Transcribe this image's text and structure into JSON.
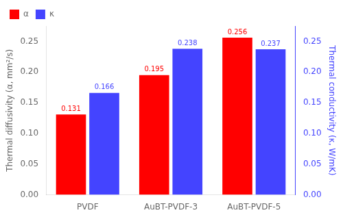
{
  "chart_data": {
    "type": "bar",
    "categories": [
      "PVDF",
      "AuBT-PVDF-3",
      "AuBT-PVDF-5"
    ],
    "series": [
      {
        "name": "α",
        "color": "#ff0000",
        "values": [
          0.131,
          0.195,
          0.256
        ]
      },
      {
        "name": "κ",
        "color": "#4444ff",
        "values": [
          0.166,
          0.238,
          0.237
        ],
        "axis": "y2"
      }
    ],
    "ylabel": "Thermal diffusivity (α, mm²/s)",
    "y2label": "Thermal conductivity (κ, W/mK)",
    "ylim": [
      0.0,
      0.275
    ],
    "yticks": [
      {
        "value": 0.0,
        "label": "0.00"
      },
      {
        "value": 0.05,
        "label": "0.05"
      },
      {
        "value": 0.1,
        "label": "0.10"
      },
      {
        "value": 0.15,
        "label": "0.15"
      },
      {
        "value": 0.2,
        "label": "0.20"
      },
      {
        "value": 0.25,
        "label": "0.25"
      }
    ],
    "y2lim": [
      0.0,
      0.275
    ],
    "y2ticks": [
      {
        "value": 0.0,
        "label": "0.00"
      },
      {
        "value": 0.05,
        "label": "0.05"
      },
      {
        "value": 0.1,
        "label": "0.10"
      },
      {
        "value": 0.15,
        "label": "0.15"
      },
      {
        "value": 0.2,
        "label": "0.20"
      },
      {
        "value": 0.25,
        "label": "0.25"
      }
    ],
    "legend": "upper left",
    "grid": false,
    "data_labels": true
  }
}
